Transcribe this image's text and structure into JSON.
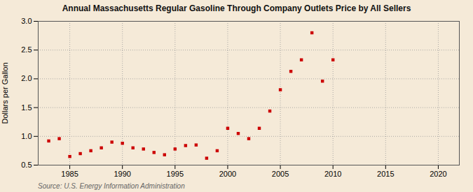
{
  "chart_data": {
    "type": "scatter",
    "title": "Annual Massachusetts Regular Gasoline Through Company Outlets Price by All Sellers",
    "ylabel": "Dollars per Gallon",
    "annotations": [
      "Source: U.S. Energy Information Administration"
    ],
    "x": [
      1983,
      1984,
      1985,
      1986,
      1987,
      1988,
      1989,
      1990,
      1991,
      1992,
      1993,
      1994,
      1995,
      1996,
      1997,
      1998,
      1999,
      2000,
      2001,
      2002,
      2003,
      2004,
      2005,
      2006,
      2007,
      2008,
      2009,
      2010
    ],
    "values": [
      0.92,
      0.96,
      0.65,
      0.7,
      0.75,
      0.8,
      0.9,
      0.88,
      0.8,
      0.78,
      0.72,
      0.68,
      0.78,
      0.84,
      0.85,
      0.62,
      0.75,
      1.14,
      1.05,
      0.96,
      1.14,
      1.44,
      1.81,
      2.13,
      2.33,
      2.8,
      1.96,
      2.33
    ],
    "color": "#cc0000",
    "marker": "square",
    "xlim": [
      1982,
      2022
    ],
    "ylim": [
      0.5,
      3.0
    ],
    "xticks": [
      1985,
      1990,
      1995,
      2000,
      2005,
      2010,
      2015,
      2020
    ],
    "yticks": [
      0.5,
      {
        "value": 1.0,
        "label": "1.0"
      },
      1.5,
      {
        "value": 2.0,
        "label": "2.0"
      },
      2.5,
      {
        "value": 3.0,
        "label": "3.0"
      }
    ],
    "grid": true
  }
}
